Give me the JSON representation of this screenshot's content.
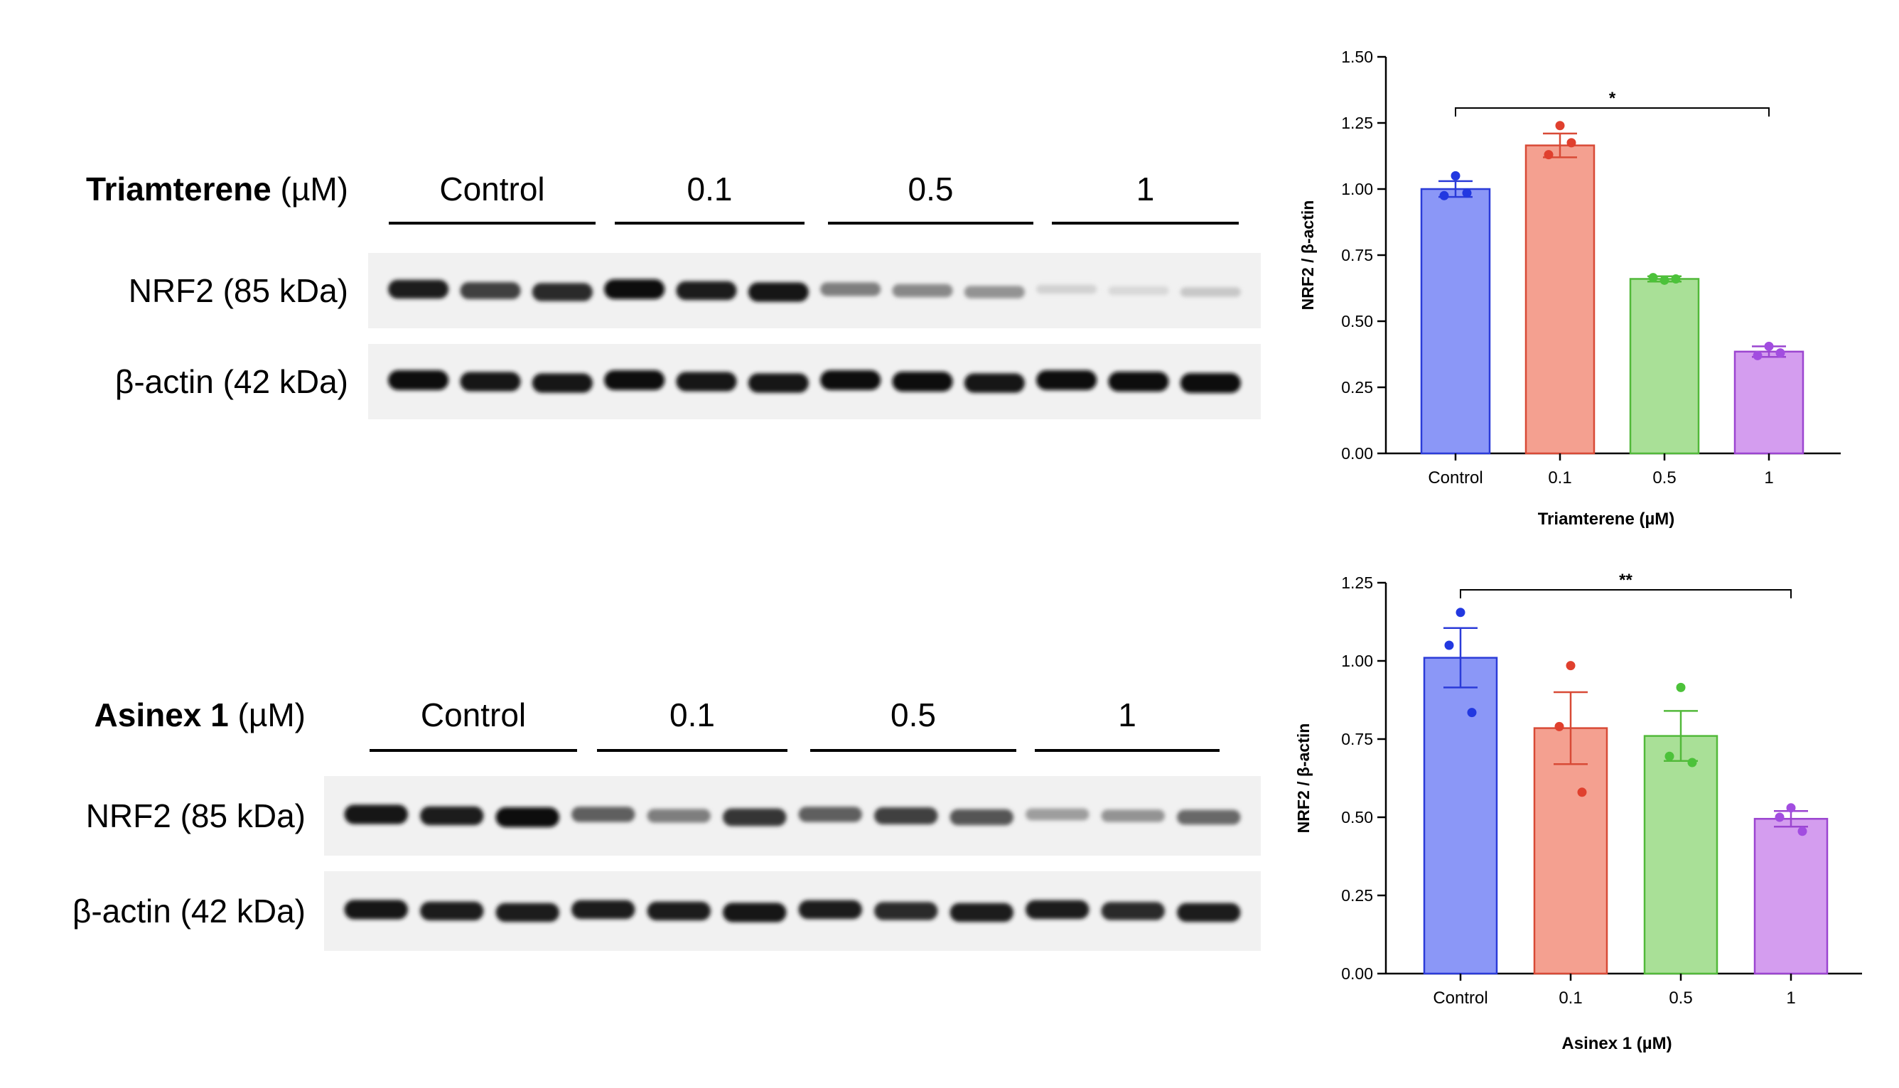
{
  "blots": [
    {
      "treatment": "Triamterene",
      "unit": "(µM)",
      "lanes": [
        "Control",
        "0.1",
        "0.5",
        "1"
      ],
      "rows": [
        {
          "label": "NRF2 (85 kDa)",
          "intensities": [
            0.9,
            0.75,
            0.85,
            1.0,
            0.9,
            0.95,
            0.45,
            0.4,
            0.35,
            0.05,
            0.02,
            0.1
          ]
        },
        {
          "label": "β-actin (42 kDa)",
          "intensities": [
            1.0,
            0.95,
            0.95,
            1.0,
            0.95,
            0.95,
            1.0,
            1.0,
            0.95,
            1.0,
            1.0,
            1.0
          ]
        }
      ]
    },
    {
      "treatment": "Asinex 1",
      "unit": "(µM)",
      "lanes": [
        "Control",
        "0.1",
        "0.5",
        "1"
      ],
      "rows": [
        {
          "label": "NRF2 (85 kDa)",
          "intensities": [
            0.95,
            0.9,
            1.0,
            0.6,
            0.45,
            0.8,
            0.6,
            0.75,
            0.65,
            0.3,
            0.35,
            0.55
          ]
        },
        {
          "label": "β-actin (42 kDa)",
          "intensities": [
            0.95,
            0.9,
            0.9,
            0.9,
            0.9,
            0.95,
            0.9,
            0.85,
            0.9,
            0.9,
            0.85,
            0.9
          ]
        }
      ]
    }
  ],
  "chart_data": [
    {
      "type": "bar",
      "categories": [
        "Control",
        "0.1",
        "0.5",
        "1"
      ],
      "values": [
        1.0,
        1.165,
        0.66,
        0.385
      ],
      "errors": [
        0.03,
        0.045,
        0.01,
        0.02
      ],
      "points": [
        [
          1.05,
          0.975,
          0.985
        ],
        [
          1.24,
          1.13,
          1.175
        ],
        [
          0.655,
          0.665,
          0.66
        ],
        [
          0.405,
          0.37,
          0.38
        ]
      ],
      "colors": [
        "#8b97f7",
        "#f4a090",
        "#a9e097",
        "#d49def"
      ],
      "edge_colors": [
        "#2b3bd8",
        "#d84a36",
        "#52b93a",
        "#9b45d0"
      ],
      "dot_colors": [
        "#2238e0",
        "#e0402e",
        "#4cc23a",
        "#a24de0"
      ],
      "xlabel": "Triamterene (µM)",
      "ylabel": "NRF2 / β-actin",
      "ylim": [
        0,
        1.5
      ],
      "yticks": [
        "0.00",
        "0.25",
        "0.50",
        "0.75",
        "1.00",
        "1.25",
        "1.50"
      ],
      "significance": {
        "from": 0,
        "to": 3,
        "label": "*"
      }
    },
    {
      "type": "bar",
      "categories": [
        "Control",
        "0.1",
        "0.5",
        "1"
      ],
      "values": [
        1.01,
        0.785,
        0.76,
        0.495
      ],
      "errors": [
        0.095,
        0.115,
        0.08,
        0.025
      ],
      "points": [
        [
          1.155,
          1.05,
          0.835
        ],
        [
          0.985,
          0.79,
          0.58
        ],
        [
          0.915,
          0.695,
          0.675
        ],
        [
          0.53,
          0.5,
          0.455
        ]
      ],
      "colors": [
        "#8b97f7",
        "#f4a090",
        "#a9e097",
        "#d49def"
      ],
      "edge_colors": [
        "#2b3bd8",
        "#d84a36",
        "#52b93a",
        "#9b45d0"
      ],
      "dot_colors": [
        "#2238e0",
        "#e0402e",
        "#4cc23a",
        "#a24de0"
      ],
      "xlabel": "Asinex 1 (µM)",
      "ylabel": "NRF2 / β-actin",
      "ylim": [
        0,
        1.25
      ],
      "yticks": [
        "0.00",
        "0.25",
        "0.50",
        "0.75",
        "1.00",
        "1.25"
      ],
      "significance": {
        "from": 0,
        "to": 3,
        "label": "**"
      }
    }
  ]
}
